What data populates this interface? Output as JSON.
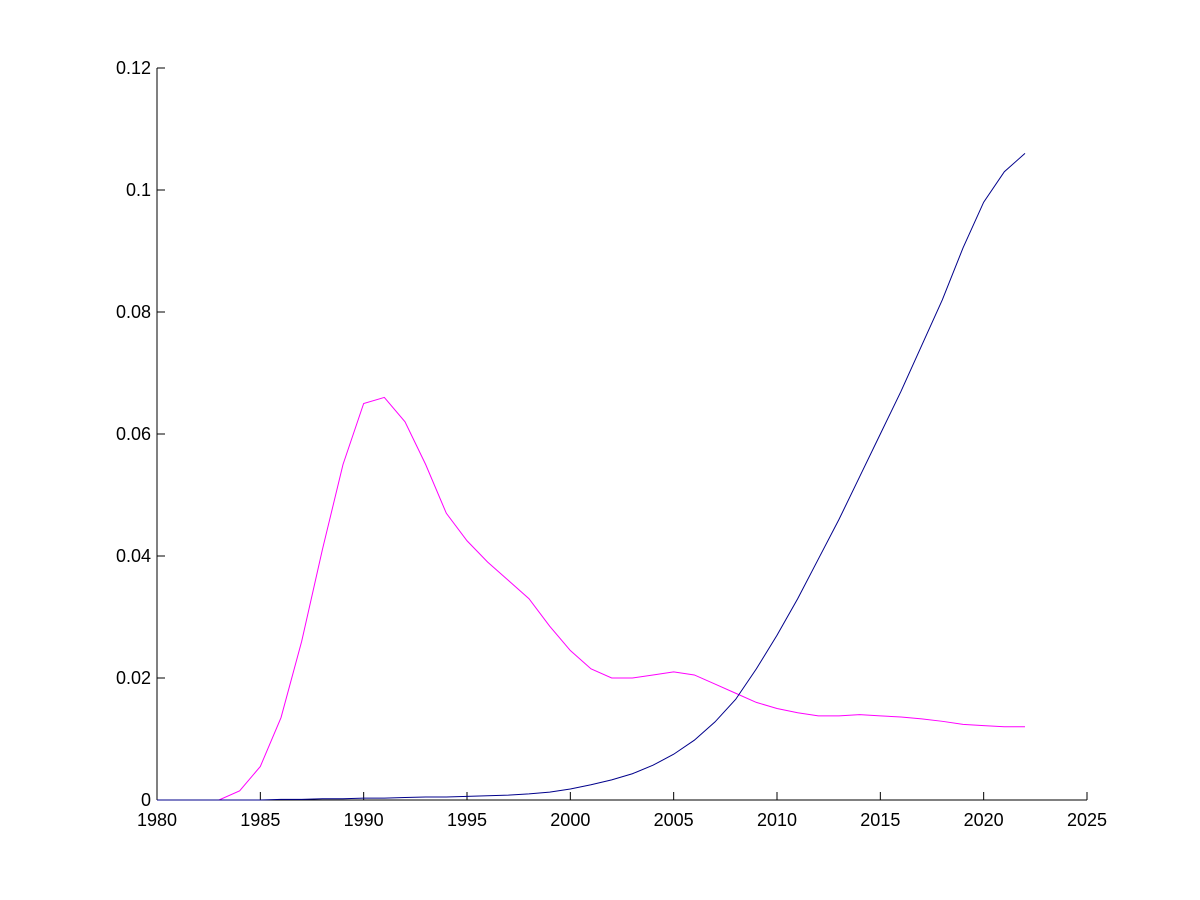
{
  "chart_data": {
    "type": "line",
    "x": [
      1980,
      1981,
      1982,
      1983,
      1984,
      1985,
      1986,
      1987,
      1988,
      1989,
      1990,
      1991,
      1992,
      1993,
      1994,
      1995,
      1996,
      1997,
      1998,
      1999,
      2000,
      2001,
      2002,
      2003,
      2004,
      2005,
      2006,
      2007,
      2008,
      2009,
      2010,
      2011,
      2012,
      2013,
      2014,
      2015,
      2016,
      2017,
      2018,
      2019,
      2020,
      2021,
      2022
    ],
    "series": [
      {
        "color": "#ff00ff",
        "values": [
          0,
          0,
          0,
          0,
          0.0015,
          0.0055,
          0.0135,
          0.026,
          0.041,
          0.055,
          0.065,
          0.066,
          0.062,
          0.055,
          0.047,
          0.0425,
          0.039,
          0.036,
          0.033,
          0.0285,
          0.0245,
          0.0215,
          0.02,
          0.02,
          0.0205,
          0.021,
          0.0205,
          0.019,
          0.0175,
          0.016,
          0.015,
          0.0143,
          0.0138,
          0.0138,
          0.014,
          0.0138,
          0.0136,
          0.0133,
          0.0129,
          0.0124,
          0.0122,
          0.012,
          0.012
        ]
      },
      {
        "color": "#00008b",
        "values": [
          0,
          0,
          0,
          0,
          0,
          0,
          0.0001,
          0.0001,
          0.0002,
          0.0002,
          0.0003,
          0.0003,
          0.0004,
          0.0005,
          0.0005,
          0.0006,
          0.0007,
          0.0008,
          0.001,
          0.0013,
          0.0018,
          0.0025,
          0.0033,
          0.0043,
          0.0057,
          0.0075,
          0.0098,
          0.0128,
          0.0165,
          0.0215,
          0.027,
          0.033,
          0.0395,
          0.046,
          0.053,
          0.06,
          0.067,
          0.0745,
          0.082,
          0.0905,
          0.098,
          0.103,
          0.106
        ]
      }
    ],
    "xlim": [
      1980,
      2025
    ],
    "xticks": [
      1980,
      1985,
      1990,
      1995,
      2000,
      2005,
      2010,
      2015,
      2020,
      2025
    ],
    "ylim": [
      0,
      0.12
    ],
    "yticks": [
      0,
      0.02,
      0.04,
      0.06,
      0.08,
      0.1,
      0.12
    ]
  }
}
